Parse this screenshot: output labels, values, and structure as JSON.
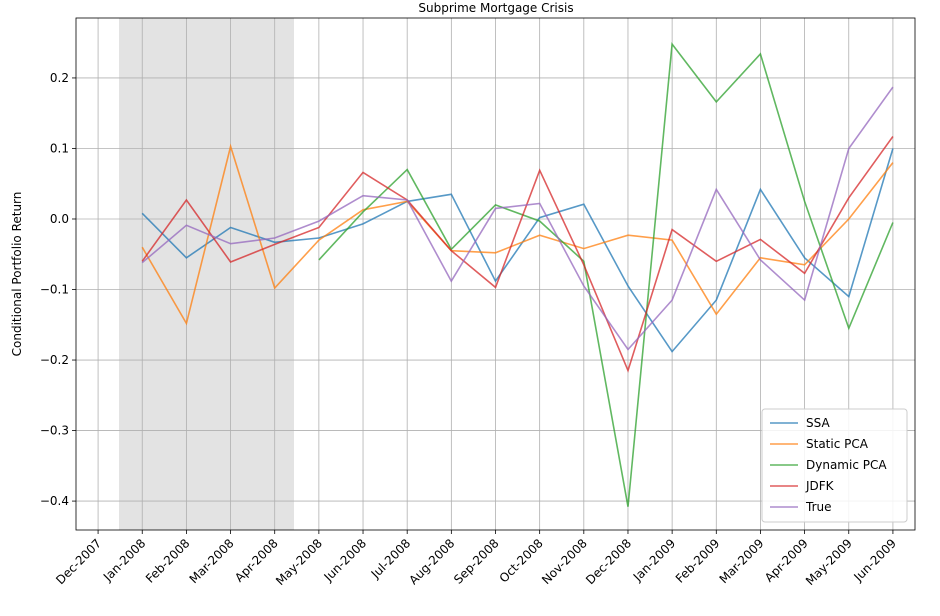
{
  "chart_data": {
    "type": "line",
    "title": "Subprime Mortgage Crisis",
    "ylabel": "Conditional Portfolio Return",
    "categories": [
      "Dec-2007",
      "Jan-2008",
      "Feb-2008",
      "Mar-2008",
      "Apr-2008",
      "May-2008",
      "Jun-2008",
      "Jul-2008",
      "Aug-2008",
      "Sep-2008",
      "Oct-2008",
      "Nov-2008",
      "Dec-2008",
      "Jan-2009",
      "Feb-2009",
      "Mar-2009",
      "Apr-2009",
      "May-2009",
      "Jun-2009"
    ],
    "series": [
      {
        "name": "SSA",
        "color": "#1f77b4",
        "values": [
          null,
          0.008,
          -0.055,
          -0.012,
          -0.033,
          -0.027,
          -0.007,
          0.025,
          0.035,
          -0.088,
          0.002,
          0.021,
          -0.095,
          -0.188,
          -0.115,
          0.042,
          -0.055,
          -0.11,
          0.1
        ]
      },
      {
        "name": "Static PCA",
        "color": "#ff7f0e",
        "values": [
          null,
          -0.04,
          -0.148,
          0.103,
          -0.098,
          -0.03,
          0.013,
          0.025,
          -0.045,
          -0.048,
          -0.023,
          -0.042,
          -0.023,
          -0.03,
          -0.135,
          -0.055,
          -0.065,
          0.0,
          0.08
        ]
      },
      {
        "name": "Dynamic PCA",
        "color": "#2ca02c",
        "values": [
          null,
          null,
          null,
          null,
          null,
          -0.058,
          0.01,
          0.07,
          -0.043,
          0.02,
          -0.003,
          -0.06,
          -0.408,
          0.248,
          0.166,
          0.234,
          0.025,
          -0.155,
          -0.005
        ]
      },
      {
        "name": "JDFK",
        "color": "#d62728",
        "values": [
          null,
          -0.06,
          0.027,
          -0.061,
          -0.036,
          -0.012,
          0.066,
          0.027,
          -0.045,
          -0.097,
          0.069,
          -0.065,
          -0.215,
          -0.015,
          -0.06,
          -0.029,
          -0.077,
          0.03,
          0.117
        ]
      },
      {
        "name": "True",
        "color": "#9467bd",
        "values": [
          null,
          -0.062,
          -0.009,
          -0.035,
          -0.027,
          -0.003,
          0.033,
          0.027,
          -0.088,
          0.015,
          0.022,
          -0.095,
          -0.185,
          -0.115,
          0.042,
          -0.058,
          -0.115,
          0.1,
          0.187
        ]
      }
    ],
    "ylim": [
      -0.441,
      0.285
    ],
    "yticks": [
      {
        "value": -0.4,
        "label": "−0.4"
      },
      {
        "value": -0.3,
        "label": "−0.3"
      },
      {
        "value": -0.2,
        "label": "−0.2"
      },
      {
        "value": -0.1,
        "label": "−0.1"
      },
      {
        "value": 0,
        "label": "0.0"
      },
      0.1,
      0.2
    ],
    "grid": true,
    "legend": "lower right"
  }
}
